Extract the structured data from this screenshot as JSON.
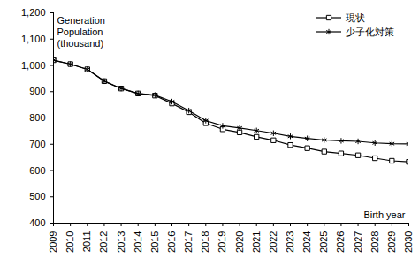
{
  "chart_data": {
    "type": "line",
    "x_label": "Birth year",
    "y_label": "Generation\nPopulation\n(thousand)",
    "x": [
      2009,
      2010,
      2011,
      2012,
      2013,
      2014,
      2015,
      2016,
      2017,
      2018,
      2019,
      2020,
      2021,
      2022,
      2023,
      2024,
      2025,
      2026,
      2027,
      2028,
      2029,
      2030
    ],
    "series": [
      {
        "name": "現状",
        "color": "#000000",
        "marker": "square",
        "line_style": "solid",
        "values": [
          1020,
          1005,
          985,
          940,
          912,
          893,
          885,
          855,
          822,
          780,
          757,
          745,
          728,
          715,
          697,
          685,
          672,
          665,
          658,
          647,
          637,
          633
        ]
      },
      {
        "name": "少子化対策",
        "color": "#000000",
        "marker": "asterisk",
        "line_style": "solid",
        "values": [
          1020,
          1005,
          985,
          940,
          912,
          893,
          887,
          862,
          828,
          790,
          770,
          762,
          752,
          742,
          730,
          722,
          716,
          713,
          711,
          705,
          702,
          701
        ]
      }
    ],
    "xlim": [
      2009,
      2030
    ],
    "xticks": [
      2009,
      2010,
      2011,
      2012,
      2013,
      2014,
      2015,
      2016,
      2017,
      2018,
      2019,
      2020,
      2021,
      2022,
      2023,
      2024,
      2025,
      2026,
      2027,
      2028,
      2029,
      2030
    ],
    "ylim": [
      400,
      1200
    ],
    "yticks": [
      400,
      500,
      600,
      700,
      800,
      900,
      {
        "value": 1000,
        "label": "1,000"
      },
      {
        "value": 1100,
        "label": "1,100"
      },
      {
        "value": 1200,
        "label": "1,200"
      }
    ],
    "grid": false,
    "legend": "top-right"
  }
}
